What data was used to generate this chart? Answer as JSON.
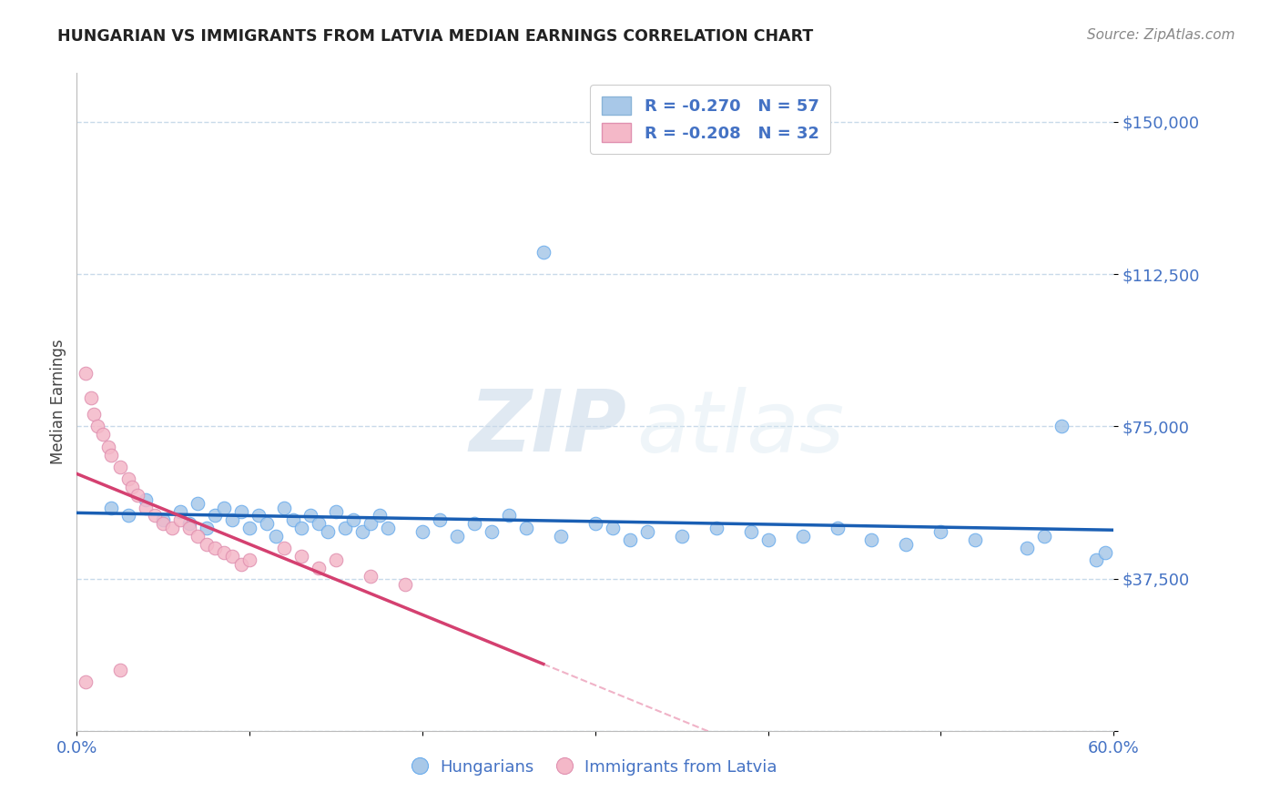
{
  "title": "HUNGARIAN VS IMMIGRANTS FROM LATVIA MEDIAN EARNINGS CORRELATION CHART",
  "source": "Source: ZipAtlas.com",
  "ylabel": "Median Earnings",
  "watermark_zip": "ZIP",
  "watermark_atlas": "atlas",
  "y_ticks": [
    0,
    37500,
    75000,
    112500,
    150000
  ],
  "y_tick_labels": [
    "",
    "$37,500",
    "$75,000",
    "$112,500",
    "$150,000"
  ],
  "x_min": 0.0,
  "x_max": 0.6,
  "y_min": 0,
  "y_max": 162000,
  "blue_R": -0.27,
  "blue_N": 57,
  "pink_R": -0.208,
  "pink_N": 32,
  "blue_color": "#a8c8e8",
  "blue_line_color": "#1a5fb4",
  "pink_color": "#f4b8c8",
  "pink_line_color": "#d44070",
  "pink_dash_color": "#e88aaa",
  "background_color": "#ffffff",
  "grid_color": "#c8daea",
  "title_color": "#222222",
  "axis_label_color": "#4472c4",
  "legend_color": "#4472c4",
  "blue_x": [
    0.02,
    0.03,
    0.04,
    0.05,
    0.06,
    0.065,
    0.07,
    0.075,
    0.08,
    0.085,
    0.09,
    0.095,
    0.1,
    0.105,
    0.11,
    0.115,
    0.12,
    0.125,
    0.13,
    0.135,
    0.14,
    0.145,
    0.15,
    0.155,
    0.16,
    0.165,
    0.17,
    0.175,
    0.18,
    0.27,
    0.2,
    0.21,
    0.22,
    0.23,
    0.24,
    0.25,
    0.26,
    0.28,
    0.3,
    0.31,
    0.32,
    0.33,
    0.35,
    0.37,
    0.39,
    0.4,
    0.42,
    0.44,
    0.46,
    0.48,
    0.5,
    0.52,
    0.55,
    0.57,
    0.59,
    0.595,
    0.56
  ],
  "blue_y": [
    55000,
    53000,
    57000,
    52000,
    54000,
    51000,
    56000,
    50000,
    53000,
    55000,
    52000,
    54000,
    50000,
    53000,
    51000,
    48000,
    55000,
    52000,
    50000,
    53000,
    51000,
    49000,
    54000,
    50000,
    52000,
    49000,
    51000,
    53000,
    50000,
    118000,
    49000,
    52000,
    48000,
    51000,
    49000,
    53000,
    50000,
    48000,
    51000,
    50000,
    47000,
    49000,
    48000,
    50000,
    49000,
    47000,
    48000,
    50000,
    47000,
    46000,
    49000,
    47000,
    45000,
    75000,
    42000,
    44000,
    48000
  ],
  "pink_x": [
    0.005,
    0.008,
    0.01,
    0.012,
    0.015,
    0.018,
    0.02,
    0.025,
    0.03,
    0.032,
    0.035,
    0.04,
    0.045,
    0.05,
    0.055,
    0.06,
    0.065,
    0.07,
    0.075,
    0.08,
    0.085,
    0.09,
    0.095,
    0.1,
    0.12,
    0.13,
    0.14,
    0.15,
    0.17,
    0.19,
    0.005,
    0.025
  ],
  "pink_y": [
    88000,
    82000,
    78000,
    75000,
    73000,
    70000,
    68000,
    65000,
    62000,
    60000,
    58000,
    55000,
    53000,
    51000,
    50000,
    52000,
    50000,
    48000,
    46000,
    45000,
    44000,
    43000,
    41000,
    42000,
    45000,
    43000,
    40000,
    42000,
    38000,
    36000,
    12000,
    15000
  ]
}
